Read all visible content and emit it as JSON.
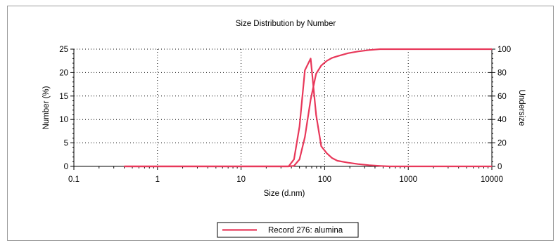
{
  "chart_data": {
    "type": "line",
    "title": "Size Distribution by Number",
    "xlabel": "Size (d.nm)",
    "ylabel": "Number (%)",
    "y2label": "Undersize",
    "xscale": "log",
    "xlim": [
      0.1,
      10000
    ],
    "ylim": [
      0,
      25
    ],
    "y2lim": [
      0,
      100
    ],
    "x_ticks": [
      "0.1",
      "1",
      "10",
      "100",
      "1000",
      "10000"
    ],
    "y_ticks": [
      "0",
      "5",
      "10",
      "15",
      "20",
      "25"
    ],
    "y2_ticks": [
      "0",
      "20",
      "40",
      "60",
      "80",
      "100"
    ],
    "grid": true,
    "legend_position": "bottom-center",
    "series": [
      {
        "name": "Record 276: alumina",
        "axis": "left",
        "color": "#e8385a",
        "x": [
          0.4,
          1,
          10,
          37,
          43,
          50,
          58,
          68,
          79,
          91,
          106,
          122,
          142,
          190,
          250,
          340,
          460,
          600,
          10000
        ],
        "y": [
          0,
          0,
          0,
          0,
          1.5,
          8.5,
          20.5,
          23,
          11,
          4.3,
          2.8,
          1.8,
          1.2,
          0.8,
          0.5,
          0.25,
          0.1,
          0,
          0
        ]
      },
      {
        "name": "Record 276: alumina",
        "axis": "right",
        "color": "#e8385a",
        "x": [
          0.4,
          1,
          10,
          37,
          43,
          50,
          58,
          68,
          79,
          91,
          106,
          122,
          142,
          190,
          250,
          340,
          460,
          600,
          10000
        ],
        "y": [
          0,
          0,
          0,
          0,
          0.5,
          6,
          25,
          57,
          79,
          86,
          90,
          92.5,
          94,
          96.5,
          98,
          99.2,
          100,
          100,
          100
        ]
      }
    ],
    "legend": {
      "label": "Record 276: alumina",
      "color": "#e8385a"
    }
  }
}
